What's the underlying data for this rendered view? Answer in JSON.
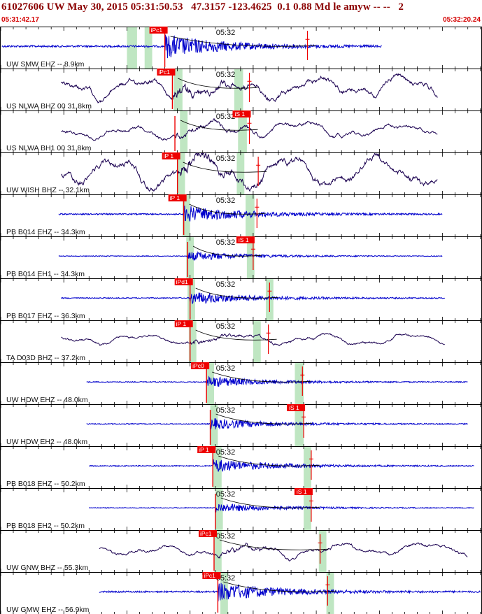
{
  "header": {
    "title": "61027606 UW May 30, 2015 05:31:50.53   47.3157 -123.4625  0.1 0.88 Md le amyw -- --   2",
    "start_time": "05:31:42.17",
    "end_time": "05:32:20.24"
  },
  "colors": {
    "panel_border": "#000000",
    "title": "#8b0000",
    "time": "#d40000",
    "pick": "#ee0000",
    "window": "#bfe6c2",
    "trace_blue": "#0000cc",
    "trace_dark": "#1a0050"
  },
  "chart_data": {
    "type": "line",
    "title": "61027606 UW May 30, 2015 05:31:50.53   47.3157 -123.4625  0.1 0.88 Md le amyw -- --   2",
    "x_range_seconds": [
      0,
      38.07
    ],
    "x_start": "05:31:42.17",
    "x_end": "05:32:20.24",
    "minute_tick_label": "05:32",
    "minute_tick_seconds": 17.83,
    "traces": [
      {
        "label": "UW SMW EHZ -- 8.9km",
        "color": "blue",
        "style": "noise",
        "start": 0.1,
        "end": 30.2,
        "amp": 0.25,
        "event": 13.0,
        "s": 24.3,
        "p_pick": "iPc1",
        "s_pick": "",
        "win_p": [
          10.0,
          10.8
        ],
        "win_s": [
          11.4,
          12.0
        ]
      },
      {
        "label": "US NLWA BHZ 00 31.8km",
        "color": "dark",
        "style": "wave",
        "start": 4.8,
        "end": 34.6,
        "amp": 0.45,
        "event": 13.6,
        "s": 19.7,
        "p_pick": "iPc1",
        "s_pick": "",
        "win_p": [
          13.7,
          14.4
        ],
        "win_s": [
          18.5,
          19.2
        ]
      },
      {
        "label": "US NLWA BH1 00 31.8km",
        "color": "dark",
        "style": "wave",
        "start": 4.8,
        "end": 34.6,
        "amp": 0.3,
        "event": 13.8,
        "s": 19.7,
        "p_pick": "",
        "s_pick": "iS 1",
        "win_p": [
          14.2,
          14.8
        ],
        "win_s": [
          18.8,
          19.5
        ]
      },
      {
        "label": "UW WISH BHZ -- 32.1km",
        "color": "dark",
        "style": "wave",
        "start": 4.8,
        "end": 34.6,
        "amp": 0.55,
        "event": 14.0,
        "s": 20.4,
        "p_pick": "iP 1",
        "s_pick": "",
        "win_p": [
          14.0,
          14.6
        ],
        "win_s": [
          18.7,
          19.3
        ]
      },
      {
        "label": "PB B014 EHZ -- 34.3km",
        "color": "blue",
        "style": "noise",
        "start": 4.6,
        "end": 35.0,
        "amp": 0.18,
        "event": 14.5,
        "s": 20.3,
        "p_pick": "iP 1",
        "s_pick": "",
        "win_p": [
          14.4,
          15.0
        ],
        "win_s": [
          19.4,
          20.1
        ]
      },
      {
        "label": "PB B014 EH1 -- 34.3km",
        "color": "blue",
        "style": "noise",
        "start": 4.6,
        "end": 35.0,
        "amp": 0.1,
        "event": 14.8,
        "s": 20.0,
        "p_pick": "",
        "s_pick": "iS 1",
        "win_p": [
          14.7,
          15.3
        ],
        "win_s": [
          19.5,
          20.1
        ]
      },
      {
        "label": "PB B017 EHZ -- 36.3km",
        "color": "blue",
        "style": "noise",
        "start": 4.8,
        "end": 35.2,
        "amp": 0.14,
        "event": 15.0,
        "s": 21.3,
        "p_pick": "iPd1",
        "s_pick": "",
        "win_p": [
          14.8,
          15.4
        ],
        "win_s": [
          21.0,
          21.6
        ]
      },
      {
        "label": "TA D03D BHZ -- 37.2km",
        "color": "dark",
        "style": "wave",
        "start": 4.8,
        "end": 35.2,
        "amp": 0.2,
        "event": 15.0,
        "s": 21.2,
        "p_pick": "iP 1",
        "s_pick": "",
        "win_p": [
          14.9,
          15.5
        ],
        "win_s": [
          20.0,
          20.6
        ]
      },
      {
        "label": "UW HDW EHZ -- 48.0km",
        "color": "blue",
        "style": "noise",
        "start": 6.8,
        "end": 37.0,
        "amp": 0.12,
        "event": 16.3,
        "s": 23.9,
        "p_pick": "iPc0",
        "s_pick": "",
        "win_p": [
          16.3,
          16.9
        ],
        "win_s": [
          23.3,
          24.0
        ]
      },
      {
        "label": "UW HDW EH2 -- 48.0km",
        "color": "blue",
        "style": "noise",
        "start": 6.8,
        "end": 37.0,
        "amp": 0.12,
        "event": 16.6,
        "s": 24.0,
        "p_pick": "",
        "s_pick": "iS 1",
        "win_p": [
          16.6,
          17.2
        ],
        "win_s": [
          23.3,
          24.0
        ]
      },
      {
        "label": "PB B018 EHZ -- 50.2km",
        "color": "blue",
        "style": "noise",
        "start": 7.0,
        "end": 37.5,
        "amp": 0.14,
        "event": 16.8,
        "s": 24.6,
        "p_pick": "iP 1",
        "s_pick": "",
        "win_p": [
          16.8,
          17.5
        ],
        "win_s": [
          24.0,
          24.6
        ]
      },
      {
        "label": "PB B018 EH2 -- 50.2km",
        "color": "blue",
        "style": "noise",
        "start": 7.0,
        "end": 37.5,
        "amp": 0.1,
        "event": 17.0,
        "s": 24.6,
        "p_pick": "",
        "s_pick": "iS 1",
        "win_p": [
          17.0,
          17.6
        ],
        "win_s": [
          24.0,
          24.6
        ]
      },
      {
        "label": "UW GNW BHZ -- 55.3km",
        "color": "dark",
        "style": "wave",
        "start": 7.8,
        "end": 37.0,
        "amp": 0.25,
        "event": 16.9,
        "s": 25.3,
        "p_pick": "iPc1",
        "s_pick": "",
        "win_p": [
          16.9,
          17.5
        ],
        "win_s": [
          25.2,
          25.8
        ]
      },
      {
        "label": "UW GMW EHZ -- 56.9km",
        "color": "blue",
        "style": "noise",
        "start": 7.8,
        "end": 38.0,
        "amp": 0.2,
        "event": 17.2,
        "s": 25.9,
        "p_pick": "iPc1",
        "s_pick": "",
        "win_p": [
          17.4,
          18.0
        ],
        "win_s": [
          25.8,
          26.4
        ]
      }
    ]
  }
}
